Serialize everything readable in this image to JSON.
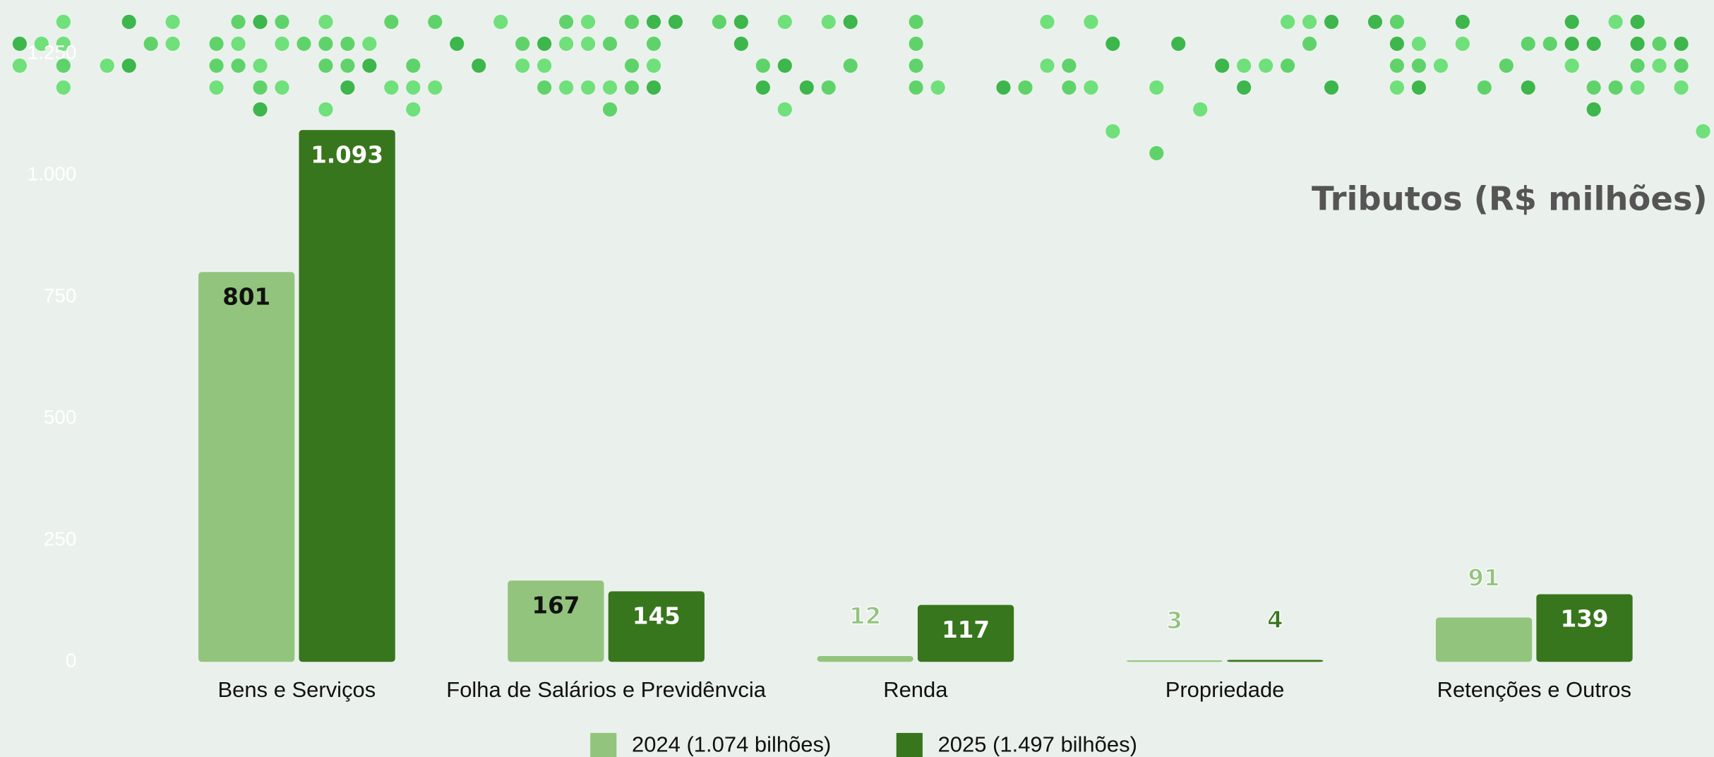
{
  "chart_data": {
    "type": "bar",
    "title": "Tributos (R$ milhões)",
    "categories": [
      "Bens e Serviços",
      "Folha de Salários e Previdênvcia",
      "Renda",
      "Propriedade",
      "Retenções e Outros"
    ],
    "series": [
      {
        "name": "2024 (1.074 bilhões)",
        "color": "#93c47d",
        "values": [
          801,
          167,
          12,
          3,
          91
        ]
      },
      {
        "name": "2025 (1.497 bilhões)",
        "color": "#38761d",
        "values": [
          1093,
          145,
          117,
          4,
          139
        ],
        "value_labels": [
          "1.093",
          "145",
          "117",
          "4",
          "139"
        ]
      }
    ],
    "ylim": [
      0,
      1250
    ],
    "yticks": [
      0,
      250,
      500,
      750,
      {
        "value": 1000,
        "label": "1.000"
      },
      {
        "value": 1250,
        "label": "1.250"
      }
    ],
    "legend": "bottom"
  }
}
